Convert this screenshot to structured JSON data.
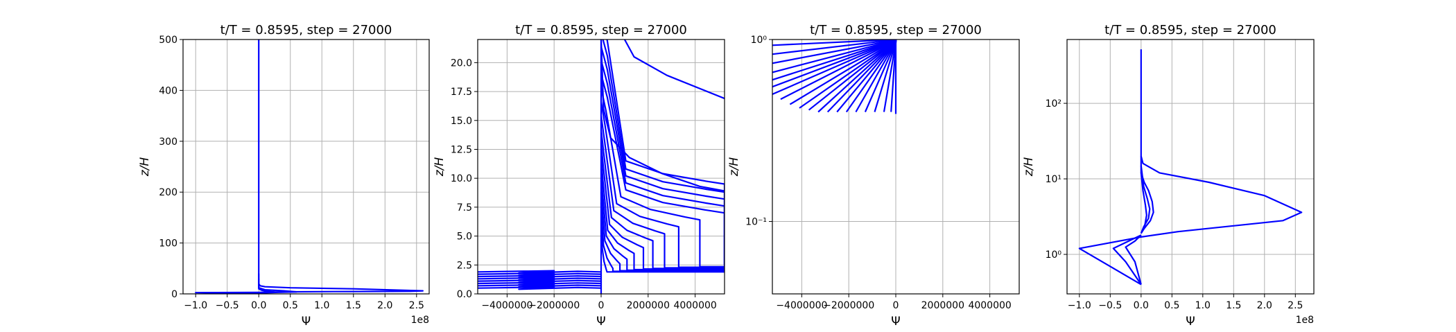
{
  "figure": {
    "colors": {
      "line": "#0000ff",
      "grid": "#b0b0b0",
      "frame": "#000000",
      "background": "#ffffff"
    }
  },
  "chart_data": [
    {
      "type": "line",
      "title": "t/T = 0.8595, step = 27000",
      "xlabel": "Ψ",
      "ylabel": "z/H",
      "x_scale_label": "1e8",
      "xlim": [
        -1.2,
        2.7
      ],
      "ylim": [
        0,
        500
      ],
      "yscale": "linear",
      "grid": true,
      "xticks": [
        -1.0,
        -0.5,
        0.0,
        0.5,
        1.0,
        1.5,
        2.0,
        2.5
      ],
      "xtick_labels": [
        "−1.0",
        "−0.5",
        "0.0",
        "0.5",
        "1.0",
        "1.5",
        "2.0",
        "2.5"
      ],
      "yticks": [
        0,
        100,
        200,
        300,
        400,
        500
      ],
      "ytick_labels": [
        "0",
        "100",
        "200",
        "300",
        "400",
        "500"
      ],
      "series": [
        {
          "x": [
            0,
            0,
            0,
            0.02,
            0.1,
            0.5,
            1.5,
            2.6,
            2.4,
            1.2,
            0.4,
            0.0,
            -1.0,
            0.0
          ],
          "y": [
            500,
            30,
            20,
            16,
            14,
            12,
            10,
            6,
            5,
            4.5,
            4,
            3,
            2.5,
            0.4
          ]
        },
        {
          "x": [
            0,
            0,
            0.1,
            0.4,
            0.6,
            0.3,
            0.0
          ],
          "y": [
            40,
            12,
            8,
            6,
            4,
            3,
            1.5
          ]
        },
        {
          "x": [
            0,
            0,
            0.05,
            0.15,
            0.25,
            0.1,
            0
          ],
          "y": [
            30,
            10,
            7,
            5,
            3.5,
            2.5,
            1
          ]
        },
        {
          "x": [
            0,
            -0.2,
            -0.4,
            -0.6,
            -0.3,
            0
          ],
          "y": [
            2,
            1.6,
            1.3,
            1.0,
            0.7,
            0.4
          ]
        }
      ]
    },
    {
      "type": "line",
      "title": "t/T = 0.8595, step = 27000",
      "xlabel": "Ψ",
      "ylabel": "z/H",
      "xlim": [
        -5250000,
        5250000
      ],
      "ylim": [
        0,
        22
      ],
      "yscale": "linear",
      "grid": true,
      "xticks": [
        -4000000,
        -2000000,
        0,
        2000000,
        4000000
      ],
      "xtick_labels": [
        "−4000000",
        "−2000000",
        "0",
        "2000000",
        "4000000"
      ],
      "yticks": [
        0.0,
        2.5,
        5.0,
        7.5,
        10.0,
        12.5,
        15.0,
        17.5,
        20.0
      ],
      "ytick_labels": [
        "0.0",
        "2.5",
        "5.0",
        "7.5",
        "10.0",
        "12.5",
        "15.0",
        "17.5",
        "20.0"
      ],
      "curve_family": {
        "lower_left_rows_y": [
          0.5,
          0.7,
          0.9,
          1.1,
          1.3,
          1.5,
          1.7,
          1.9
        ],
        "right_family_peak_y": [
          1.9,
          2.2,
          2.6,
          3.0,
          3.5,
          4.0,
          4.6,
          5.2,
          5.8,
          6.4,
          7.0,
          7.6,
          8.2,
          8.8,
          9.5
        ],
        "right_family_peak_x": [
          250000,
          500000,
          800000,
          1100000,
          1400000,
          1800000,
          2200000,
          2700000,
          3300000,
          4200000,
          5250000,
          5250000,
          5250000,
          5250000,
          5250000
        ]
      },
      "series": [
        {
          "x": [
            1000000,
            1400000,
            2800000,
            5250000
          ],
          "y": [
            22,
            20.5,
            18.9,
            16.9
          ]
        },
        {
          "x": [
            0,
            100000,
            400000,
            1200000,
            2600000,
            4200000,
            5250000
          ],
          "y": [
            22,
            16,
            13.5,
            11.8,
            10.4,
            9.3,
            8.9
          ]
        }
      ]
    },
    {
      "type": "line",
      "title": "t/T = 0.8595, step = 27000",
      "xlabel": "Ψ",
      "ylabel": "z/H",
      "xlim": [
        -5250000,
        5250000
      ],
      "ylim": [
        0.04,
        1.0
      ],
      "yscale": "log",
      "grid": true,
      "xticks": [
        -4000000,
        -2000000,
        0,
        2000000,
        4000000
      ],
      "xtick_labels": [
        "−4000000",
        "−2000000",
        "0",
        "2000000",
        "4000000"
      ],
      "yticks": [
        0.1,
        1.0
      ],
      "ytick_labels": [
        "10⁻¹",
        "10⁰"
      ],
      "curve_family": {
        "left_x": [
          -5250000,
          -5250000,
          -5250000,
          -5250000,
          -5250000,
          -5250000,
          -5250000,
          -4900000,
          -4500000,
          -4100000,
          -3700000,
          -3300000,
          -2900000,
          -2500000,
          -2100000,
          -1700000,
          -1300000,
          -900000,
          -500000,
          -200000
        ],
        "left_y": [
          0.93,
          0.83,
          0.74,
          0.66,
          0.6,
          0.55,
          0.5,
          0.47,
          0.44,
          0.42,
          0.41,
          0.4,
          0.4,
          0.4,
          0.4,
          0.4,
          0.4,
          0.4,
          0.4,
          0.4
        ],
        "converge_x": 0,
        "converge_y": [
          0.39,
          1.0
        ]
      }
    },
    {
      "type": "line",
      "title": "t/T = 0.8595, step = 27000",
      "xlabel": "Ψ",
      "ylabel": "z/H",
      "x_scale_label": "1e8",
      "xlim": [
        -1.2,
        2.8
      ],
      "ylim": [
        0.3,
        700
      ],
      "yscale": "log",
      "grid": true,
      "xticks": [
        -1.0,
        -0.5,
        0.0,
        0.5,
        1.0,
        1.5,
        2.0,
        2.5
      ],
      "xtick_labels": [
        "−1.0",
        "−0.5",
        "0.0",
        "0.5",
        "1.0",
        "1.5",
        "2.0",
        "2.5"
      ],
      "yticks": [
        1,
        10,
        100
      ],
      "ytick_labels": [
        "10⁰",
        "10¹",
        "10²"
      ],
      "series": [
        {
          "x": [
            0,
            0,
            0.03,
            0.3,
            1.1,
            2.0,
            2.6,
            2.3,
            0.6,
            0.0,
            -1.0,
            0.0
          ],
          "y": [
            520,
            20,
            16,
            12,
            9,
            6,
            3.6,
            2.8,
            2.0,
            1.7,
            1.2,
            0.4
          ]
        },
        {
          "x": [
            0,
            0,
            0.05,
            0.12,
            0.18,
            0.2,
            0.15,
            0.05,
            0
          ],
          "y": [
            20,
            12,
            9,
            7,
            5,
            3.6,
            2.8,
            2.2,
            1.9
          ]
        },
        {
          "x": [
            0,
            0.04,
            0.1,
            0.14,
            0.12,
            0.04,
            0
          ],
          "y": [
            15,
            8,
            5.5,
            4,
            3,
            2.3,
            1.9
          ]
        },
        {
          "x": [
            0,
            0.03,
            0.07,
            0.09,
            0.06,
            0
          ],
          "y": [
            12,
            7,
            4.5,
            3.3,
            2.4,
            1.9
          ]
        },
        {
          "x": [
            0,
            -0.2,
            -0.45,
            -0.25,
            0
          ],
          "y": [
            1.8,
            1.5,
            1.2,
            0.8,
            0.4
          ]
        },
        {
          "x": [
            0,
            -0.1,
            -0.25,
            -0.1,
            0
          ],
          "y": [
            1.8,
            1.5,
            1.25,
            0.8,
            0.4
          ]
        }
      ]
    }
  ]
}
